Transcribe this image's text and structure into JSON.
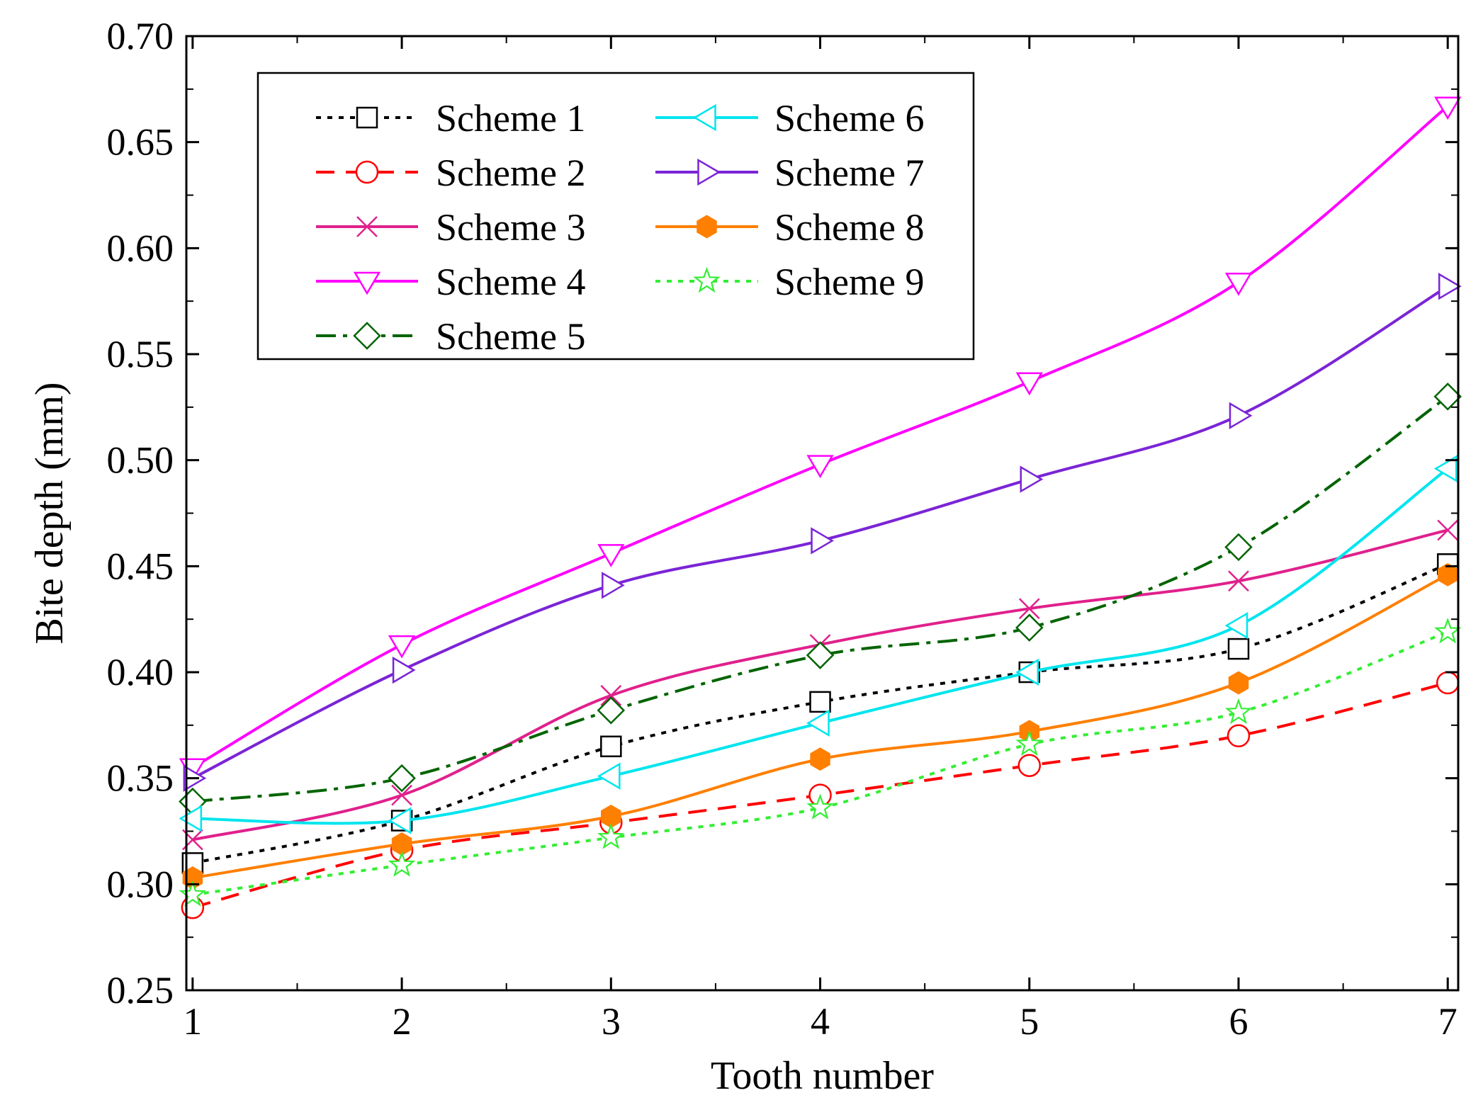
{
  "chart_data": {
    "type": "line",
    "title": "",
    "xlabel": "Tooth number",
    "ylabel": "Bite depth (mm)",
    "x": [
      1,
      2,
      3,
      4,
      5,
      6,
      7
    ],
    "xlim": [
      0.97,
      7.05
    ],
    "ylim": [
      0.25,
      0.7
    ],
    "xticks": [
      "1",
      "2",
      "3",
      "4",
      "5",
      "6",
      "7"
    ],
    "yticks": [
      "0.25",
      "0.30",
      "0.35",
      "0.40",
      "0.45",
      "0.50",
      "0.55",
      "0.60",
      "0.65",
      "0.70"
    ],
    "ytick_values": [
      0.25,
      0.3,
      0.35,
      0.4,
      0.45,
      0.5,
      0.55,
      0.6,
      0.65,
      0.7
    ],
    "grid": false,
    "legend_position": "top-left",
    "series": [
      {
        "name": "Scheme 1",
        "color": "#000000",
        "dash": "dot",
        "marker": "square-open",
        "values": [
          0.31,
          0.33,
          0.365,
          0.386,
          0.4,
          0.411,
          0.451
        ]
      },
      {
        "name": "Scheme 2",
        "color": "#ff0000",
        "dash": "dash",
        "marker": "circle-open",
        "values": [
          0.289,
          0.316,
          0.329,
          0.342,
          0.356,
          0.37,
          0.395
        ]
      },
      {
        "name": "Scheme 3",
        "color": "#e0208c",
        "dash": "solid",
        "marker": "x",
        "values": [
          0.321,
          0.342,
          0.389,
          0.413,
          0.43,
          0.443,
          0.467
        ]
      },
      {
        "name": "Scheme 4",
        "color": "#ff00ff",
        "dash": "solid",
        "marker": "triangle-down-open",
        "values": [
          0.355,
          0.413,
          0.456,
          0.498,
          0.537,
          0.584,
          0.667
        ]
      },
      {
        "name": "Scheme 5",
        "color": "#006400",
        "dash": "dashdot",
        "marker": "diamond-open",
        "values": [
          0.339,
          0.35,
          0.382,
          0.408,
          0.421,
          0.459,
          0.53
        ]
      },
      {
        "name": "Scheme 6",
        "color": "#00e5ee",
        "dash": "solid",
        "marker": "triangle-left-open",
        "values": [
          0.331,
          0.33,
          0.351,
          0.376,
          0.4,
          0.422,
          0.496
        ]
      },
      {
        "name": "Scheme 7",
        "color": "#7b24d6",
        "dash": "solid",
        "marker": "triangle-right-open",
        "values": [
          0.35,
          0.401,
          0.441,
          0.462,
          0.491,
          0.521,
          0.582
        ]
      },
      {
        "name": "Scheme 8",
        "color": "#ff7f00",
        "dash": "solid",
        "marker": "hexagon-filled",
        "values": [
          0.303,
          0.319,
          0.332,
          0.359,
          0.372,
          0.395,
          0.446
        ]
      },
      {
        "name": "Scheme 9",
        "color": "#33ee33",
        "dash": "dot",
        "marker": "star-open",
        "values": [
          0.295,
          0.309,
          0.322,
          0.336,
          0.366,
          0.381,
          0.419
        ]
      }
    ]
  }
}
